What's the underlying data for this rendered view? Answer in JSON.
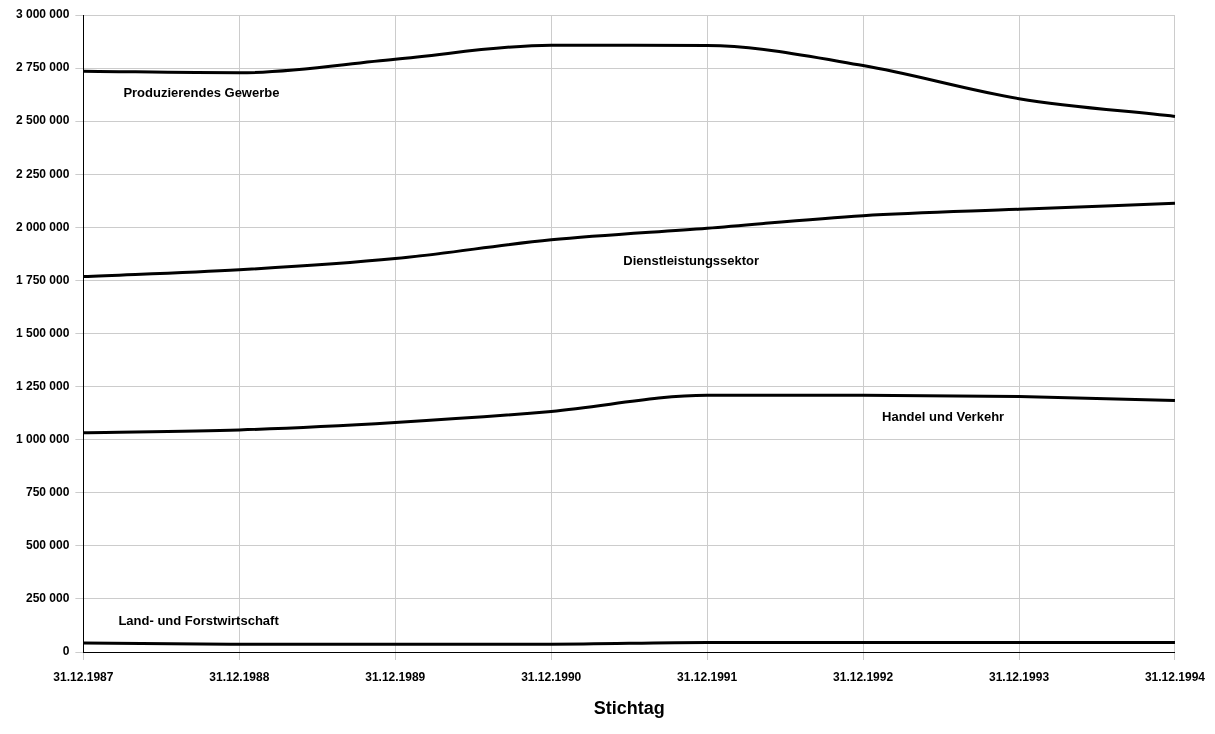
{
  "chart_data": {
    "type": "line",
    "xlabel": "Stichtag",
    "categories": [
      "31.12.1987",
      "31.12.1988",
      "31.12.1989",
      "31.12.1990",
      "31.12.1991",
      "31.12.1992",
      "31.12.1993",
      "31.12.1994"
    ],
    "series": [
      {
        "name": "Produzierendes Gewerbe",
        "color": "#000000",
        "values": [
          2735000,
          2728000,
          2792000,
          2858000,
          2856000,
          2762000,
          2606000,
          2522000
        ]
      },
      {
        "name": "Dienstleistungssektor",
        "color": "#000000",
        "values": [
          1768000,
          1800000,
          1853000,
          1941000,
          1996000,
          2055000,
          2085000,
          2113000
        ]
      },
      {
        "name": "Handel und Verkehr",
        "color": "#000000",
        "values": [
          1033000,
          1046000,
          1081000,
          1133000,
          1209000,
          1209000,
          1203000,
          1184000
        ]
      },
      {
        "name": "Land- und Forstwirtschaft",
        "color": "#000000",
        "values": [
          42000,
          37000,
          37000,
          37000,
          45000,
          45000,
          45000,
          45000
        ]
      }
    ],
    "ylim": [
      0,
      3000000
    ],
    "yticks": [
      {
        "value": 0,
        "label": "0"
      },
      {
        "value": 250000,
        "label": "250 000"
      },
      {
        "value": 500000,
        "label": "500 000"
      },
      {
        "value": 750000,
        "label": "750 000"
      },
      {
        "value": 1000000,
        "label": "1 000 000"
      },
      {
        "value": 1250000,
        "label": "1 250 000"
      },
      {
        "value": 1500000,
        "label": "1 500 000"
      },
      {
        "value": 1750000,
        "label": "1 750 000"
      },
      {
        "value": 2000000,
        "label": "2 000 000"
      },
      {
        "value": 2250000,
        "label": "2 250 000"
      },
      {
        "value": 2500000,
        "label": "2 500 000"
      },
      {
        "value": 2750000,
        "label": "2 750 000"
      },
      {
        "value": 3000000,
        "label": "3 000 000"
      }
    ],
    "grid": true,
    "legend": false,
    "marker": "none",
    "line_style": "solid"
  }
}
